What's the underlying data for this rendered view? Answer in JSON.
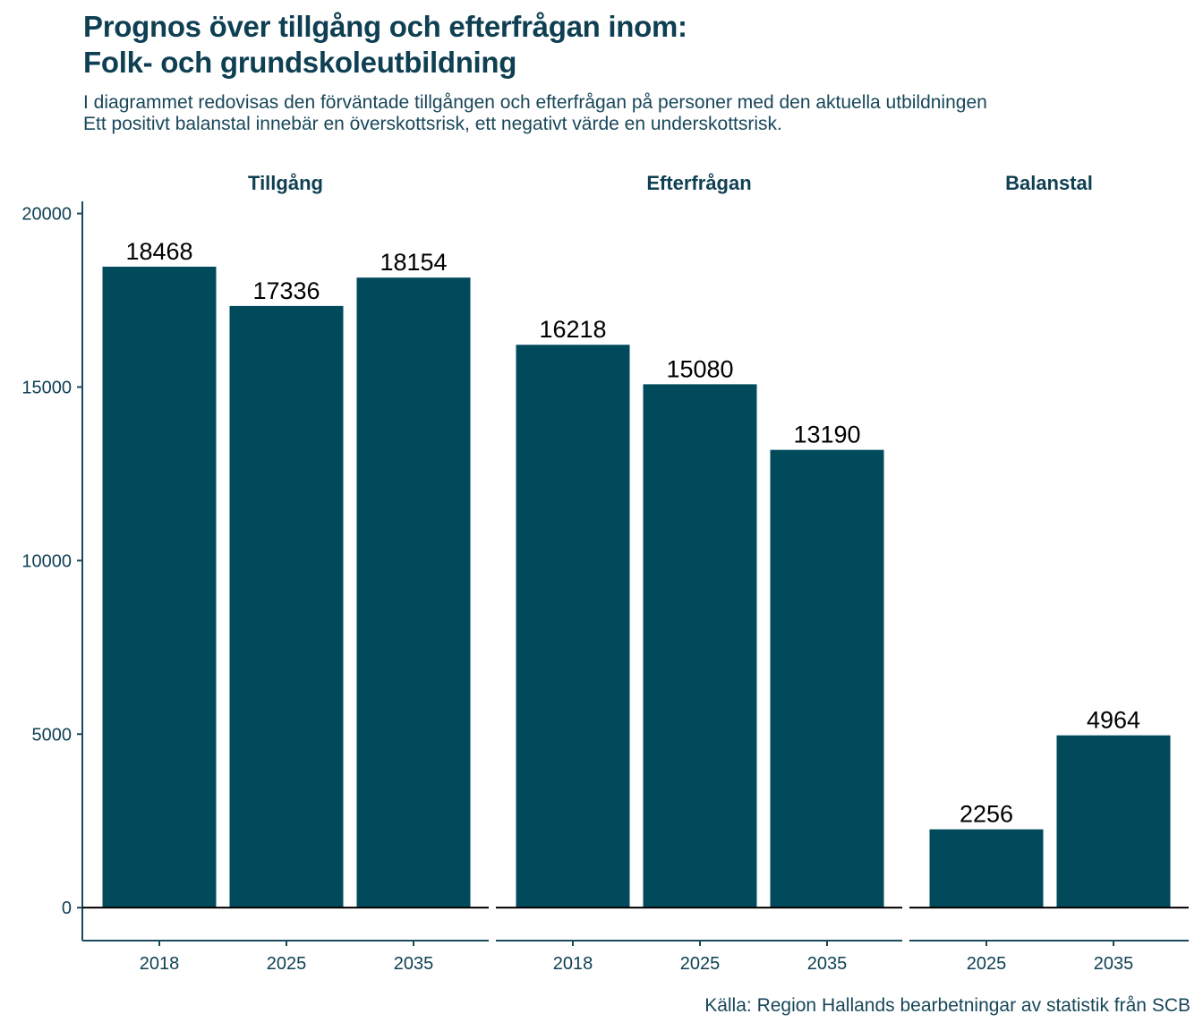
{
  "title_lines": [
    "Prognos över tillgång och efterfrågan inom:",
    "Folk- och grundskoleutbildning"
  ],
  "subtitle_lines": [
    "I diagrammet redovisas den förväntade tillgången och efterfrågan på personer med den aktuella utbildningen",
    "Ett positivt balanstal innebär en överskottsrisk, ett negativt värde en underskottsrisk."
  ],
  "caption": "Källa: Region Hallands bearbetningar av statistik från SCB",
  "colors": {
    "bar": "#004a5c",
    "text": "#0e3f52",
    "axis": "#1a4a5c",
    "zero_line": "#000000",
    "label": "#000000"
  },
  "chart_data": {
    "type": "bar",
    "facets": [
      {
        "title": "Tillgång",
        "categories": [
          "2018",
          "2025",
          "2035"
        ],
        "values": [
          18468,
          17336,
          18154
        ]
      },
      {
        "title": "Efterfrågan",
        "categories": [
          "2018",
          "2025",
          "2035"
        ],
        "values": [
          16218,
          15080,
          13190
        ]
      },
      {
        "title": "Balanstal",
        "categories": [
          "2025",
          "2035"
        ],
        "values": [
          2256,
          4964
        ]
      }
    ],
    "yticks": [
      0,
      5000,
      10000,
      15000,
      20000
    ],
    "ylim": [
      -950,
      20350
    ],
    "xlabel": "",
    "ylabel": "",
    "grid": false,
    "data_labels": true
  }
}
